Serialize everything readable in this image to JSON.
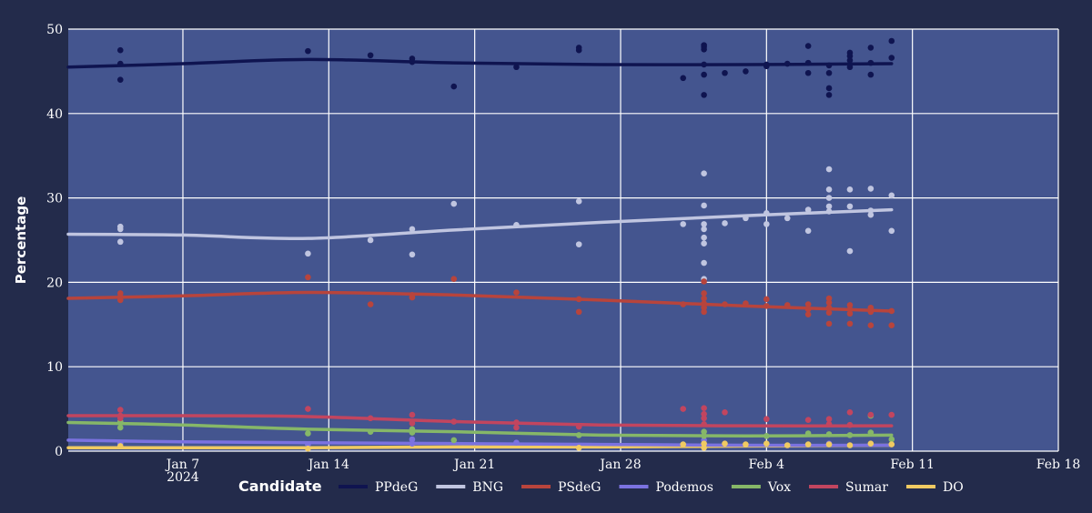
{
  "chart_data": {
    "type": "scatter",
    "ylabel": "Percentage",
    "xlabel": "",
    "ylim": [
      0,
      50
    ],
    "xlim": [
      "2024-01-01T12:00",
      "2024-02-18"
    ],
    "y_ticks": [
      0,
      10,
      20,
      30,
      40,
      50
    ],
    "x_ticks": [
      {
        "date": "2024-01-07",
        "label": "Jan 7",
        "sublabel": "2024"
      },
      {
        "date": "2024-01-14",
        "label": "Jan 14",
        "sublabel": ""
      },
      {
        "date": "2024-01-21",
        "label": "Jan 21",
        "sublabel": ""
      },
      {
        "date": "2024-01-28",
        "label": "Jan 28",
        "sublabel": ""
      },
      {
        "date": "2024-02-04",
        "label": "Feb 4",
        "sublabel": ""
      },
      {
        "date": "2024-02-11",
        "label": "Feb 11",
        "sublabel": ""
      },
      {
        "date": "2024-02-18",
        "label": "Feb 18",
        "sublabel": ""
      }
    ],
    "grid": true,
    "background": "#44558f",
    "legend": {
      "title": "Candidate",
      "placement": "bottom"
    },
    "series": [
      {
        "name": "PPdeG",
        "color": "#0f1450",
        "points": [
          [
            "2024-01-04",
            47.5
          ],
          [
            "2024-01-04",
            45.9
          ],
          [
            "2024-01-04",
            44.0
          ],
          [
            "2024-01-13",
            47.4
          ],
          [
            "2024-01-16",
            46.9
          ],
          [
            "2024-01-18",
            46.5
          ],
          [
            "2024-01-18",
            46.1
          ],
          [
            "2024-01-20",
            43.2
          ],
          [
            "2024-01-23",
            45.5
          ],
          [
            "2024-01-26",
            47.8
          ],
          [
            "2024-01-26",
            47.5
          ],
          [
            "2024-01-31",
            44.2
          ],
          [
            "2024-02-01",
            48.1
          ],
          [
            "2024-02-01",
            47.9
          ],
          [
            "2024-02-01",
            47.6
          ],
          [
            "2024-02-01",
            45.8
          ],
          [
            "2024-02-01",
            44.6
          ],
          [
            "2024-02-01",
            42.2
          ],
          [
            "2024-02-02",
            44.8
          ],
          [
            "2024-02-03",
            45.0
          ],
          [
            "2024-02-04",
            45.8
          ],
          [
            "2024-02-04",
            45.6
          ],
          [
            "2024-02-05",
            45.9
          ],
          [
            "2024-02-06",
            48.0
          ],
          [
            "2024-02-06",
            46.0
          ],
          [
            "2024-02-06",
            44.8
          ],
          [
            "2024-02-07",
            45.7
          ],
          [
            "2024-02-07",
            44.8
          ],
          [
            "2024-02-07",
            43.0
          ],
          [
            "2024-02-07",
            42.2
          ],
          [
            "2024-02-08",
            47.2
          ],
          [
            "2024-02-08",
            46.8
          ],
          [
            "2024-02-08",
            46.3
          ],
          [
            "2024-02-08",
            45.5
          ],
          [
            "2024-02-09",
            47.8
          ],
          [
            "2024-02-09",
            46.0
          ],
          [
            "2024-02-09",
            44.6
          ],
          [
            "2024-02-10",
            48.6
          ],
          [
            "2024-02-10",
            46.6
          ]
        ],
        "trend": [
          [
            "2024-01-01T12:00",
            45.5
          ],
          [
            "2024-01-07",
            45.9
          ],
          [
            "2024-01-13",
            46.4
          ],
          [
            "2024-01-20",
            46.0
          ],
          [
            "2024-01-27",
            45.8
          ],
          [
            "2024-02-03",
            45.8
          ],
          [
            "2024-02-10",
            45.9
          ]
        ]
      },
      {
        "name": "BNG",
        "color": "#c0c5e0",
        "points": [
          [
            "2024-01-04",
            26.6
          ],
          [
            "2024-01-04",
            26.3
          ],
          [
            "2024-01-04",
            24.8
          ],
          [
            "2024-01-13",
            23.4
          ],
          [
            "2024-01-16",
            25.0
          ],
          [
            "2024-01-18",
            26.3
          ],
          [
            "2024-01-18",
            23.3
          ],
          [
            "2024-01-20",
            29.3
          ],
          [
            "2024-01-23",
            26.8
          ],
          [
            "2024-01-26",
            29.6
          ],
          [
            "2024-01-26",
            24.5
          ],
          [
            "2024-01-31",
            26.9
          ],
          [
            "2024-02-01",
            32.9
          ],
          [
            "2024-02-01",
            29.1
          ],
          [
            "2024-02-01",
            26.9
          ],
          [
            "2024-02-01",
            26.3
          ],
          [
            "2024-02-01",
            25.3
          ],
          [
            "2024-02-01",
            24.6
          ],
          [
            "2024-02-01",
            22.3
          ],
          [
            "2024-02-01",
            20.4
          ],
          [
            "2024-02-02",
            27.0
          ],
          [
            "2024-02-03",
            27.6
          ],
          [
            "2024-02-04",
            28.2
          ],
          [
            "2024-02-04",
            26.9
          ],
          [
            "2024-02-05",
            27.6
          ],
          [
            "2024-02-06",
            28.6
          ],
          [
            "2024-02-06",
            26.1
          ],
          [
            "2024-02-07",
            33.4
          ],
          [
            "2024-02-07",
            31.0
          ],
          [
            "2024-02-07",
            30.0
          ],
          [
            "2024-02-07",
            29.0
          ],
          [
            "2024-02-07",
            28.4
          ],
          [
            "2024-02-08",
            31.0
          ],
          [
            "2024-02-08",
            29.0
          ],
          [
            "2024-02-08",
            23.7
          ],
          [
            "2024-02-09",
            31.1
          ],
          [
            "2024-02-09",
            28.5
          ],
          [
            "2024-02-09",
            28.0
          ],
          [
            "2024-02-10",
            30.3
          ],
          [
            "2024-02-10",
            26.1
          ]
        ],
        "trend": [
          [
            "2024-01-01T12:00",
            25.7
          ],
          [
            "2024-01-07",
            25.6
          ],
          [
            "2024-01-13",
            25.2
          ],
          [
            "2024-01-20",
            26.2
          ],
          [
            "2024-01-27",
            27.1
          ],
          [
            "2024-02-03",
            27.9
          ],
          [
            "2024-02-10",
            28.6
          ]
        ]
      },
      {
        "name": "PSdeG",
        "color": "#b8443c",
        "points": [
          [
            "2024-01-04",
            18.7
          ],
          [
            "2024-01-04",
            18.3
          ],
          [
            "2024-01-04",
            17.9
          ],
          [
            "2024-01-13",
            20.6
          ],
          [
            "2024-01-16",
            17.4
          ],
          [
            "2024-01-18",
            18.5
          ],
          [
            "2024-01-18",
            18.2
          ],
          [
            "2024-01-20",
            20.4
          ],
          [
            "2024-01-23",
            18.8
          ],
          [
            "2024-01-26",
            18.0
          ],
          [
            "2024-01-26",
            16.5
          ],
          [
            "2024-01-31",
            17.4
          ],
          [
            "2024-02-01",
            20.1
          ],
          [
            "2024-02-01",
            18.7
          ],
          [
            "2024-02-01",
            18.1
          ],
          [
            "2024-02-01",
            17.5
          ],
          [
            "2024-02-01",
            17.0
          ],
          [
            "2024-02-01",
            16.5
          ],
          [
            "2024-02-02",
            17.4
          ],
          [
            "2024-02-03",
            17.5
          ],
          [
            "2024-02-04",
            18.0
          ],
          [
            "2024-02-04",
            17.2
          ],
          [
            "2024-02-05",
            17.3
          ],
          [
            "2024-02-06",
            17.4
          ],
          [
            "2024-02-06",
            16.8
          ],
          [
            "2024-02-06",
            16.2
          ],
          [
            "2024-02-07",
            18.1
          ],
          [
            "2024-02-07",
            17.6
          ],
          [
            "2024-02-07",
            17.0
          ],
          [
            "2024-02-07",
            16.4
          ],
          [
            "2024-02-07",
            15.1
          ],
          [
            "2024-02-08",
            17.3
          ],
          [
            "2024-02-08",
            16.8
          ],
          [
            "2024-02-08",
            16.3
          ],
          [
            "2024-02-08",
            15.1
          ],
          [
            "2024-02-09",
            17.0
          ],
          [
            "2024-02-09",
            16.5
          ],
          [
            "2024-02-09",
            14.9
          ],
          [
            "2024-02-10",
            16.6
          ],
          [
            "2024-02-10",
            14.9
          ]
        ],
        "trend": [
          [
            "2024-01-01T12:00",
            18.1
          ],
          [
            "2024-01-07",
            18.4
          ],
          [
            "2024-01-13",
            18.8
          ],
          [
            "2024-01-20",
            18.5
          ],
          [
            "2024-01-27",
            17.9
          ],
          [
            "2024-02-03",
            17.2
          ],
          [
            "2024-02-10",
            16.6
          ]
        ]
      },
      {
        "name": "Podemos",
        "color": "#7b72e0",
        "points": [
          [
            "2024-01-04",
            0.9
          ],
          [
            "2024-01-13",
            0.8
          ],
          [
            "2024-01-18",
            1.4
          ],
          [
            "2024-01-18",
            0.9
          ],
          [
            "2024-01-23",
            1.0
          ],
          [
            "2024-02-01",
            1.3
          ],
          [
            "2024-02-01",
            0.8
          ],
          [
            "2024-02-07",
            0.9
          ]
        ],
        "trend": [
          [
            "2024-01-01T12:00",
            1.3
          ],
          [
            "2024-01-07",
            1.1
          ],
          [
            "2024-01-13",
            1.0
          ],
          [
            "2024-01-20",
            0.9
          ],
          [
            "2024-01-27",
            0.8
          ],
          [
            "2024-02-03",
            0.7
          ],
          [
            "2024-02-10",
            0.7
          ]
        ]
      },
      {
        "name": "Vox",
        "color": "#86b768",
        "points": [
          [
            "2024-01-04",
            3.5
          ],
          [
            "2024-01-04",
            2.8
          ],
          [
            "2024-01-13",
            2.1
          ],
          [
            "2024-01-16",
            2.3
          ],
          [
            "2024-01-18",
            2.6
          ],
          [
            "2024-01-18",
            2.2
          ],
          [
            "2024-01-20",
            1.3
          ],
          [
            "2024-01-26",
            1.9
          ],
          [
            "2024-02-01",
            2.3
          ],
          [
            "2024-02-01",
            1.8
          ],
          [
            "2024-02-04",
            1.8
          ],
          [
            "2024-02-06",
            2.1
          ],
          [
            "2024-02-07",
            2.0
          ],
          [
            "2024-02-08",
            1.9
          ],
          [
            "2024-02-09",
            4.2
          ],
          [
            "2024-02-09",
            2.2
          ],
          [
            "2024-02-10",
            1.4
          ]
        ],
        "trend": [
          [
            "2024-01-01T12:00",
            3.4
          ],
          [
            "2024-01-07",
            3.1
          ],
          [
            "2024-01-13",
            2.6
          ],
          [
            "2024-01-20",
            2.3
          ],
          [
            "2024-01-27",
            1.9
          ],
          [
            "2024-02-03",
            1.8
          ],
          [
            "2024-02-10",
            1.9
          ]
        ]
      },
      {
        "name": "Sumar",
        "color": "#c2455f",
        "points": [
          [
            "2024-01-04",
            4.9
          ],
          [
            "2024-01-04",
            4.2
          ],
          [
            "2024-01-04",
            3.9
          ],
          [
            "2024-01-13",
            5.0
          ],
          [
            "2024-01-16",
            3.9
          ],
          [
            "2024-01-18",
            4.3
          ],
          [
            "2024-01-18",
            3.3
          ],
          [
            "2024-01-20",
            3.5
          ],
          [
            "2024-01-23",
            3.4
          ],
          [
            "2024-01-23",
            2.8
          ],
          [
            "2024-01-26",
            2.9
          ],
          [
            "2024-01-31",
            5.0
          ],
          [
            "2024-02-01",
            5.1
          ],
          [
            "2024-02-01",
            4.4
          ],
          [
            "2024-02-01",
            3.9
          ],
          [
            "2024-02-01",
            3.2
          ],
          [
            "2024-02-02",
            4.6
          ],
          [
            "2024-02-04",
            3.8
          ],
          [
            "2024-02-06",
            3.7
          ],
          [
            "2024-02-07",
            3.8
          ],
          [
            "2024-02-07",
            3.2
          ],
          [
            "2024-02-08",
            4.6
          ],
          [
            "2024-02-08",
            3.1
          ],
          [
            "2024-02-09",
            4.3
          ],
          [
            "2024-02-10",
            4.3
          ]
        ],
        "trend": [
          [
            "2024-01-01T12:00",
            4.2
          ],
          [
            "2024-01-07",
            4.2
          ],
          [
            "2024-01-13",
            4.1
          ],
          [
            "2024-01-20",
            3.5
          ],
          [
            "2024-01-27",
            3.1
          ],
          [
            "2024-02-03",
            3.0
          ],
          [
            "2024-02-10",
            3.0
          ]
        ]
      },
      {
        "name": "DO",
        "color": "#f0ca62",
        "points": [
          [
            "2024-01-04",
            0.6
          ],
          [
            "2024-01-13",
            0.3
          ],
          [
            "2024-01-26",
            0.4
          ],
          [
            "2024-01-31",
            0.8
          ],
          [
            "2024-02-01",
            0.9
          ],
          [
            "2024-02-01",
            0.4
          ],
          [
            "2024-02-02",
            0.9
          ],
          [
            "2024-02-03",
            0.8
          ],
          [
            "2024-02-04",
            0.9
          ],
          [
            "2024-02-05",
            0.7
          ],
          [
            "2024-02-06",
            0.8
          ],
          [
            "2024-02-07",
            0.8
          ],
          [
            "2024-02-08",
            0.7
          ],
          [
            "2024-02-09",
            0.9
          ],
          [
            "2024-02-10",
            0.8
          ]
        ],
        "trend": [
          [
            "2024-01-01T12:00",
            0.4
          ],
          [
            "2024-01-07",
            0.4
          ],
          [
            "2024-01-13",
            0.4
          ],
          [
            "2024-01-20",
            0.5
          ],
          [
            "2024-01-27",
            0.5
          ],
          [
            "2024-02-03",
            0.6
          ],
          [
            "2024-02-10",
            0.7
          ]
        ]
      }
    ]
  }
}
